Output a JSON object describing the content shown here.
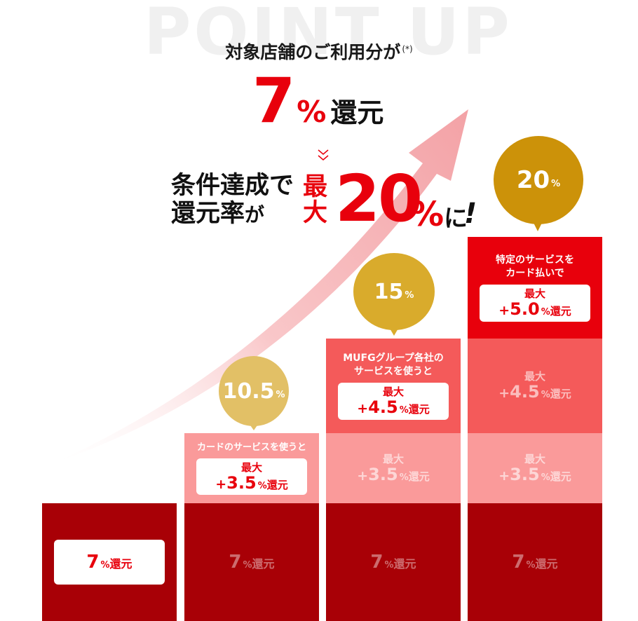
{
  "watermark": "POINT UP",
  "headline": {
    "top": "対象店舗のご利用分が",
    "note": "(*)",
    "rate": "7",
    "rate_pct": "%",
    "rate_label": "還元",
    "cond_line1": "条件達成で",
    "cond_line2_a": "還元率",
    "cond_line2_b": "が",
    "max_label": "最大",
    "max_value": "20",
    "max_pct": "%",
    "suffix": "に",
    "excl": "!"
  },
  "bubbles": [
    {
      "value": "10.5",
      "pct": "%",
      "color": "#e2c066"
    },
    {
      "value": "15",
      "pct": "%",
      "color": "#d9ab2c"
    },
    {
      "value": "20",
      "pct": "%",
      "color": "#cc9209"
    }
  ],
  "base": {
    "value": "7",
    "pct": "%",
    "label": "還元"
  },
  "stage1": {
    "caption": "カードのサービスを使うと",
    "max": "最大",
    "plus": "+",
    "value": "3.5",
    "pct": "%",
    "label": "還元"
  },
  "stage2": {
    "caption_l1": "MUFGグループ各社の",
    "caption_l2": "サービスを使うと",
    "max": "最大",
    "plus": "+",
    "value": "4.5",
    "pct": "%",
    "label": "還元"
  },
  "stage3": {
    "caption_l1": "特定のサービスを",
    "caption_l2": "カード払いで",
    "max": "最大",
    "plus": "+",
    "value": "5.0",
    "pct": "%",
    "label": "還元"
  },
  "colors": {
    "red": "#e8000c",
    "dark_red": "#a80006",
    "light_pink": "#fa9a9a",
    "mid_pink": "#f45a5a",
    "gold": "#cc9209"
  }
}
